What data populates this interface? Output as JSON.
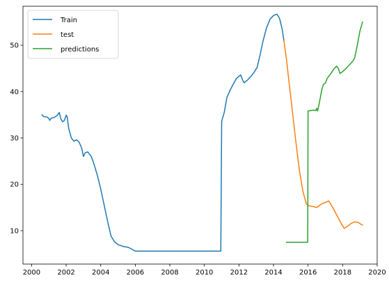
{
  "chart_data": {
    "type": "line",
    "title": "",
    "xlabel": "",
    "ylabel": "",
    "xlim": [
      1999.5,
      2020.0
    ],
    "ylim": [
      2.8,
      58.4
    ],
    "x_ticks": [
      2000,
      2002,
      2004,
      2006,
      2008,
      2010,
      2012,
      2014,
      2016,
      2018,
      2020
    ],
    "x_tick_labels": [
      "2000",
      "2002",
      "2004",
      "2006",
      "2008",
      "2010",
      "2012",
      "2014",
      "2016",
      "2018",
      "2020"
    ],
    "y_ticks": [
      10,
      20,
      30,
      40,
      50
    ],
    "y_tick_labels": [
      "10",
      "20",
      "30",
      "40",
      "50"
    ],
    "grid": false,
    "legend_position": "upper-left",
    "series": [
      {
        "name": "Train",
        "color": "#1f77b4",
        "points": [
          [
            2000.6,
            35.0
          ],
          [
            2000.7,
            34.6
          ],
          [
            2000.9,
            34.5
          ],
          [
            2001.0,
            34.2
          ],
          [
            2001.05,
            33.8
          ],
          [
            2001.15,
            34.3
          ],
          [
            2001.3,
            34.4
          ],
          [
            2001.5,
            34.9
          ],
          [
            2001.6,
            35.5
          ],
          [
            2001.7,
            34.0
          ],
          [
            2001.8,
            33.5
          ],
          [
            2001.9,
            33.8
          ],
          [
            2002.0,
            34.9
          ],
          [
            2002.05,
            34.7
          ],
          [
            2002.15,
            32.0
          ],
          [
            2002.3,
            30.0
          ],
          [
            2002.45,
            29.3
          ],
          [
            2002.6,
            29.6
          ],
          [
            2002.75,
            29.1
          ],
          [
            2002.9,
            27.8
          ],
          [
            2003.0,
            26.0
          ],
          [
            2003.1,
            26.8
          ],
          [
            2003.25,
            27.0
          ],
          [
            2003.45,
            26.0
          ],
          [
            2003.6,
            24.5
          ],
          [
            2003.8,
            22.0
          ],
          [
            2004.0,
            19.0
          ],
          [
            2004.2,
            15.5
          ],
          [
            2004.4,
            12.0
          ],
          [
            2004.6,
            8.8
          ],
          [
            2004.8,
            7.6
          ],
          [
            2005.0,
            7.0
          ],
          [
            2005.3,
            6.6
          ],
          [
            2005.6,
            6.4
          ],
          [
            2005.8,
            6.0
          ],
          [
            2006.0,
            5.6
          ],
          [
            2007.0,
            5.6
          ],
          [
            2008.0,
            5.6
          ],
          [
            2009.0,
            5.6
          ],
          [
            2010.0,
            5.6
          ],
          [
            2010.95,
            5.6
          ],
          [
            2011.0,
            33.6
          ],
          [
            2011.15,
            35.5
          ],
          [
            2011.3,
            38.7
          ],
          [
            2011.5,
            40.4
          ],
          [
            2011.7,
            41.8
          ],
          [
            2011.85,
            42.8
          ],
          [
            2012.0,
            43.3
          ],
          [
            2012.1,
            43.6
          ],
          [
            2012.2,
            42.6
          ],
          [
            2012.3,
            41.9
          ],
          [
            2012.5,
            42.5
          ],
          [
            2012.7,
            43.3
          ],
          [
            2012.9,
            44.3
          ],
          [
            2013.05,
            45.2
          ],
          [
            2013.2,
            47.5
          ],
          [
            2013.4,
            51.0
          ],
          [
            2013.6,
            53.8
          ],
          [
            2013.8,
            55.6
          ],
          [
            2014.0,
            56.4
          ],
          [
            2014.2,
            56.7
          ],
          [
            2014.35,
            55.8
          ],
          [
            2014.5,
            53.5
          ],
          [
            2014.6,
            51.0
          ]
        ]
      },
      {
        "name": "test",
        "color": "#ff7f0e",
        "points": [
          [
            2014.6,
            51.0
          ],
          [
            2014.75,
            47.0
          ],
          [
            2014.9,
            42.0
          ],
          [
            2015.1,
            35.5
          ],
          [
            2015.3,
            29.0
          ],
          [
            2015.5,
            23.0
          ],
          [
            2015.7,
            18.5
          ],
          [
            2015.9,
            15.8
          ],
          [
            2016.0,
            15.4
          ],
          [
            2016.3,
            15.2
          ],
          [
            2016.5,
            15.0
          ],
          [
            2016.8,
            15.8
          ],
          [
            2017.0,
            16.1
          ],
          [
            2017.2,
            16.4
          ],
          [
            2017.4,
            15.2
          ],
          [
            2017.6,
            13.8
          ],
          [
            2017.8,
            12.4
          ],
          [
            2018.0,
            11.0
          ],
          [
            2018.1,
            10.5
          ],
          [
            2018.3,
            11.0
          ],
          [
            2018.5,
            11.6
          ],
          [
            2018.7,
            11.9
          ],
          [
            2018.9,
            11.8
          ],
          [
            2019.05,
            11.4
          ],
          [
            2019.15,
            11.2
          ]
        ]
      },
      {
        "name": "predictions",
        "color": "#2ca02c",
        "points": [
          [
            2014.75,
            7.5
          ],
          [
            2015.0,
            7.5
          ],
          [
            2015.5,
            7.5
          ],
          [
            2015.98,
            7.5
          ],
          [
            2016.0,
            35.8
          ],
          [
            2016.3,
            36.0
          ],
          [
            2016.45,
            35.9
          ],
          [
            2016.5,
            36.4
          ],
          [
            2016.55,
            35.8
          ],
          [
            2016.65,
            37.5
          ],
          [
            2016.8,
            40.5
          ],
          [
            2016.9,
            41.6
          ],
          [
            2017.0,
            41.8
          ],
          [
            2017.1,
            42.8
          ],
          [
            2017.3,
            43.8
          ],
          [
            2017.5,
            44.9
          ],
          [
            2017.65,
            45.5
          ],
          [
            2017.75,
            45.0
          ],
          [
            2017.85,
            43.9
          ],
          [
            2018.0,
            44.3
          ],
          [
            2018.2,
            45.0
          ],
          [
            2018.4,
            45.8
          ],
          [
            2018.6,
            46.6
          ],
          [
            2018.7,
            47.3
          ],
          [
            2018.85,
            50.0
          ],
          [
            2019.0,
            53.0
          ],
          [
            2019.15,
            55.0
          ]
        ]
      }
    ]
  }
}
